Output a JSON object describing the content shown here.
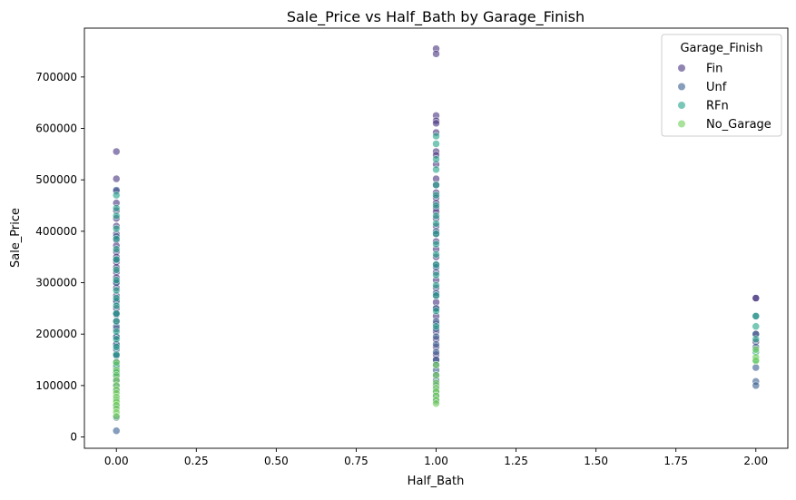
{
  "chart_data": {
    "type": "scatter",
    "title": "Sale_Price vs Half_Bath by Garage_Finish",
    "xlabel": "Half_Bath",
    "ylabel": "Sale_Price",
    "xlim": [
      -0.1,
      2.1
    ],
    "ylim": [
      -22000,
      795000
    ],
    "xticks": [
      0.0,
      0.25,
      0.5,
      0.75,
      1.0,
      1.25,
      1.5,
      1.75,
      2.0
    ],
    "xtick_labels": [
      "0.00",
      "0.25",
      "0.50",
      "0.75",
      "1.00",
      "1.25",
      "1.50",
      "1.75",
      "2.00"
    ],
    "yticks": [
      0,
      100000,
      200000,
      300000,
      400000,
      500000,
      600000,
      700000
    ],
    "ytick_labels": [
      "0",
      "100000",
      "200000",
      "300000",
      "400000",
      "500000",
      "600000",
      "700000"
    ],
    "grid": false,
    "legend": {
      "title": "Garage_Finish",
      "placement": "top-right"
    },
    "series": [
      {
        "name": "Fin",
        "color": "#46327e",
        "x": [
          0,
          0,
          0,
          0,
          0,
          0,
          0,
          0,
          0,
          0,
          0,
          0,
          0,
          0,
          0,
          0,
          0,
          0,
          0,
          0,
          0,
          0,
          0,
          0,
          0,
          0,
          0,
          1,
          1,
          1,
          1,
          1,
          1,
          1,
          1,
          1,
          1,
          1,
          1,
          1,
          1,
          1,
          1,
          1,
          1,
          1,
          1,
          1,
          1,
          1,
          1,
          1,
          1,
          1,
          1,
          1,
          1,
          1,
          1,
          1,
          1,
          1,
          1,
          2,
          2,
          2,
          2
        ],
        "y": [
          555000,
          502000,
          478000,
          455000,
          440000,
          425000,
          410000,
          395000,
          383000,
          372000,
          360000,
          350000,
          340000,
          330000,
          320000,
          310000,
          300000,
          290000,
          275000,
          262000,
          250000,
          238000,
          225000,
          210000,
          195000,
          180000,
          160000,
          755000,
          745000,
          625000,
          615000,
          610000,
          592000,
          555000,
          548000,
          530000,
          502000,
          490000,
          475000,
          465000,
          455000,
          445000,
          438000,
          425000,
          410000,
          395000,
          380000,
          365000,
          350000,
          335000,
          320000,
          305000,
          290000,
          275000,
          262000,
          250000,
          235000,
          220000,
          205000,
          190000,
          175000,
          160000,
          150000,
          270000,
          270000,
          200000,
          185000
        ]
      },
      {
        "name": "Unf",
        "color": "#365c8d",
        "x": [
          0,
          0,
          0,
          0,
          0,
          0,
          0,
          0,
          0,
          0,
          0,
          0,
          0,
          0,
          0,
          0,
          0,
          0,
          0,
          0,
          0,
          0,
          1,
          1,
          1,
          1,
          1,
          1,
          1,
          1,
          1,
          1,
          1,
          1,
          1,
          1,
          1,
          1,
          1,
          1,
          2,
          2,
          2,
          2,
          2,
          2
        ],
        "y": [
          480000,
          390000,
          345000,
          300000,
          265000,
          240000,
          215000,
          195000,
          180000,
          170000,
          158000,
          146000,
          135000,
          126000,
          118000,
          110000,
          100000,
          90000,
          75000,
          60000,
          38000,
          12000,
          400000,
          330000,
          280000,
          250000,
          225000,
          210000,
          195000,
          180000,
          165000,
          150000,
          140000,
          130000,
          120000,
          110000,
          100000,
          90000,
          80000,
          70000,
          235000,
          200000,
          175000,
          135000,
          108000,
          100000
        ]
      },
      {
        "name": "RFn",
        "color": "#1fa187",
        "x": [
          0,
          0,
          0,
          0,
          0,
          0,
          0,
          0,
          0,
          0,
          0,
          0,
          0,
          0,
          0,
          0,
          0,
          0,
          0,
          0,
          1,
          1,
          1,
          1,
          1,
          1,
          1,
          1,
          1,
          1,
          1,
          1,
          1,
          1,
          1,
          1,
          1,
          1,
          2,
          2,
          2,
          2,
          2
        ],
        "y": [
          470000,
          445000,
          430000,
          405000,
          385000,
          365000,
          345000,
          325000,
          305000,
          285000,
          270000,
          255000,
          240000,
          225000,
          205000,
          190000,
          175000,
          160000,
          140000,
          125000,
          585000,
          570000,
          540000,
          520000,
          490000,
          470000,
          450000,
          430000,
          415000,
          395000,
          375000,
          355000,
          335000,
          315000,
          295000,
          275000,
          245000,
          215000,
          235000,
          215000,
          190000,
          165000,
          150000
        ]
      },
      {
        "name": "No_Garage",
        "color": "#6ece58",
        "x": [
          0,
          0,
          0,
          0,
          0,
          0,
          0,
          0,
          0,
          0,
          0,
          0,
          0,
          0,
          1,
          1,
          1,
          1,
          1,
          1,
          1,
          1,
          2,
          2,
          2
        ],
        "y": [
          145000,
          130000,
          120000,
          110000,
          100000,
          92000,
          85000,
          78000,
          72000,
          68000,
          62000,
          55000,
          48000,
          40000,
          140000,
          120000,
          105000,
          95000,
          88000,
          80000,
          72000,
          65000,
          170000,
          155000,
          148000
        ]
      }
    ]
  }
}
